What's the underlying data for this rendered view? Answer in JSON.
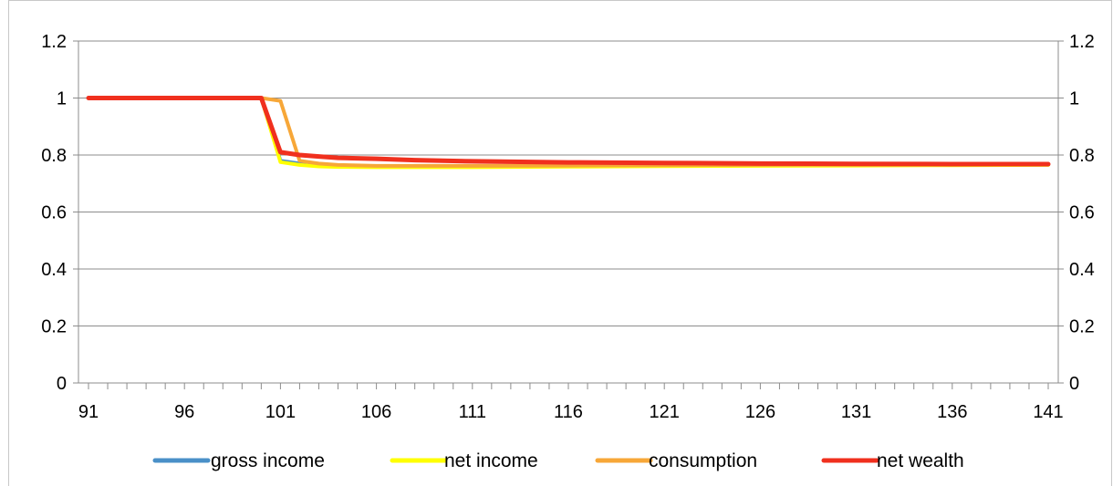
{
  "chart_data": {
    "type": "line",
    "title": "",
    "xlabel": "",
    "ylabel": "",
    "x_min": 91,
    "x_max": 141,
    "x_ticks": [
      91,
      96,
      101,
      106,
      111,
      116,
      121,
      126,
      131,
      136,
      141
    ],
    "x_tick_labels": [
      "91",
      "96",
      "101",
      "106",
      "111",
      "116",
      "121",
      "126",
      "131",
      "136",
      "141"
    ],
    "ylim": [
      0,
      1.2
    ],
    "y_ticks": [
      0,
      0.2,
      0.4,
      0.6,
      0.8,
      1,
      1.2
    ],
    "y_tick_labels": [
      "0",
      "0.2",
      "0.4",
      "0.6",
      "0.8",
      "1",
      "1.2"
    ],
    "y2_tick_labels": [
      "0",
      "0.2",
      "0.4",
      "0.6",
      "0.8",
      "1",
      "1.2"
    ],
    "grid": "horizontal",
    "legend_position": "bottom",
    "series": [
      {
        "name": "gross income",
        "color": "#4A90C8",
        "points": [
          [
            91,
            1
          ],
          [
            96,
            1
          ],
          [
            100,
            1
          ],
          [
            101,
            0.78
          ],
          [
            102,
            0.77
          ],
          [
            103,
            0.765
          ],
          [
            104,
            0.762
          ],
          [
            106,
            0.76
          ],
          [
            111,
            0.76
          ],
          [
            116,
            0.762
          ],
          [
            121,
            0.763
          ],
          [
            126,
            0.764
          ],
          [
            131,
            0.765
          ],
          [
            136,
            0.765
          ],
          [
            141,
            0.766
          ]
        ]
      },
      {
        "name": "net income",
        "color": "#FFFF00",
        "points": [
          [
            91,
            1
          ],
          [
            96,
            1
          ],
          [
            100,
            1
          ],
          [
            101,
            0.775
          ],
          [
            102,
            0.765
          ],
          [
            103,
            0.76
          ],
          [
            104,
            0.758
          ],
          [
            106,
            0.757
          ],
          [
            111,
            0.757
          ],
          [
            116,
            0.759
          ],
          [
            121,
            0.761
          ],
          [
            126,
            0.762
          ],
          [
            131,
            0.763
          ],
          [
            136,
            0.764
          ],
          [
            141,
            0.765
          ]
        ]
      },
      {
        "name": "consumption",
        "color": "#F7A738",
        "points": [
          [
            91,
            1
          ],
          [
            96,
            1
          ],
          [
            100,
            1
          ],
          [
            101,
            0.99
          ],
          [
            102,
            0.78
          ],
          [
            103,
            0.77
          ],
          [
            104,
            0.765
          ],
          [
            106,
            0.762
          ],
          [
            111,
            0.762
          ],
          [
            116,
            0.763
          ],
          [
            121,
            0.764
          ],
          [
            126,
            0.765
          ],
          [
            131,
            0.766
          ],
          [
            136,
            0.766
          ],
          [
            141,
            0.767
          ]
        ]
      },
      {
        "name": "net wealth",
        "color": "#F0301E",
        "points": [
          [
            91,
            1
          ],
          [
            96,
            1
          ],
          [
            100,
            1
          ],
          [
            101,
            0.81
          ],
          [
            102,
            0.8
          ],
          [
            103,
            0.795
          ],
          [
            104,
            0.79
          ],
          [
            106,
            0.787
          ],
          [
            108,
            0.782
          ],
          [
            111,
            0.778
          ],
          [
            116,
            0.774
          ],
          [
            121,
            0.772
          ],
          [
            126,
            0.77
          ],
          [
            131,
            0.769
          ],
          [
            136,
            0.768
          ],
          [
            141,
            0.768
          ]
        ]
      }
    ]
  }
}
